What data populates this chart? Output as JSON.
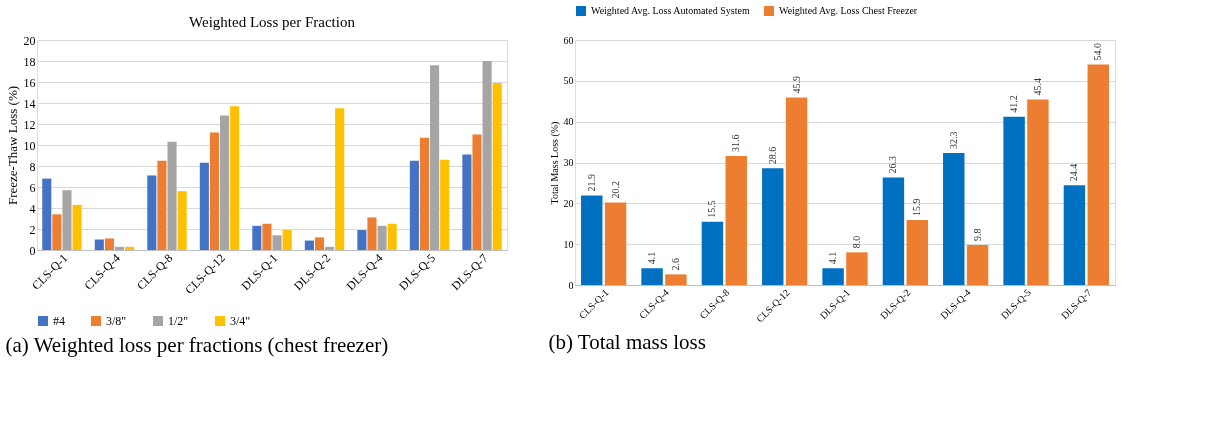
{
  "chart_data": [
    {
      "type": "bar",
      "title": "Weighted Loss per Fraction",
      "ylabel": "Freeze-Thaw Loss (%)",
      "categories": [
        "CLS-Q-1",
        "CLS-Q-4",
        "CLS-Q-8",
        "CLS-Q-12",
        "DLS-Q-1",
        "DLS-Q-2",
        "DLS-Q-4",
        "DLS-Q-5",
        "DLS-Q-7"
      ],
      "series": [
        {
          "name": "#4",
          "color": "#4472c4",
          "values": [
            6.8,
            1.0,
            7.1,
            8.3,
            2.3,
            0.9,
            1.9,
            8.5,
            9.1
          ]
        },
        {
          "name": "3/8\"",
          "color": "#ed7d31",
          "values": [
            3.4,
            1.1,
            8.5,
            11.2,
            2.5,
            1.2,
            3.1,
            10.7,
            11.0
          ]
        },
        {
          "name": "1/2\"",
          "color": "#a5a5a5",
          "values": [
            5.7,
            0.3,
            10.3,
            12.8,
            1.4,
            0.3,
            2.3,
            17.6,
            18.0
          ]
        },
        {
          "name": "3/4\"",
          "color": "#ffc000",
          "values": [
            4.3,
            0.3,
            5.6,
            13.7,
            1.9,
            13.5,
            2.5,
            8.6,
            15.9
          ]
        }
      ],
      "ylim": [
        0,
        20
      ],
      "yticks": [
        0,
        2,
        4,
        6,
        8,
        10,
        12,
        14,
        16,
        18,
        20
      ],
      "grid": "y",
      "legend": "bottom",
      "annotations": [
        "(a) Weighted loss per fractions (chest freezer)"
      ]
    },
    {
      "type": "bar",
      "ylabel": "Total Mass Loss (%)",
      "categories": [
        "CLS-Q-1",
        "CLS-Q-4",
        "CLS-Q-8",
        "CLS-Q-12",
        "DLS-Q-1",
        "DLS-Q-2",
        "DLS-Q-4",
        "DLS-Q-5",
        "DLS-Q-7"
      ],
      "series": [
        {
          "name": "Weighted Avg. Loss Automated System",
          "color": "#0070c0",
          "values": [
            21.9,
            4.1,
            15.5,
            28.6,
            4.1,
            26.3,
            32.3,
            41.2,
            24.4
          ],
          "value_labels": [
            "21.9",
            "4.1",
            "15.5",
            "28.6",
            "4.1",
            "26.3",
            "32.3",
            "41.2",
            "24.4"
          ]
        },
        {
          "name": "Weighted Avg. Loss Chest Freezer",
          "color": "#ed7d31",
          "values": [
            20.2,
            2.6,
            31.6,
            45.9,
            8,
            15.9,
            9.8,
            45.4,
            54
          ],
          "value_labels": [
            "20.2",
            "2.6",
            "31.6",
            "45.9",
            "8.0",
            "15.9",
            "9.8",
            "45.4",
            "54.0"
          ]
        }
      ],
      "ylim": [
        0,
        60
      ],
      "yticks": [
        0,
        10,
        20,
        30,
        40,
        50,
        60
      ],
      "grid": "y",
      "legend": "top",
      "annotations": [
        "(b) Total mass loss"
      ]
    }
  ]
}
